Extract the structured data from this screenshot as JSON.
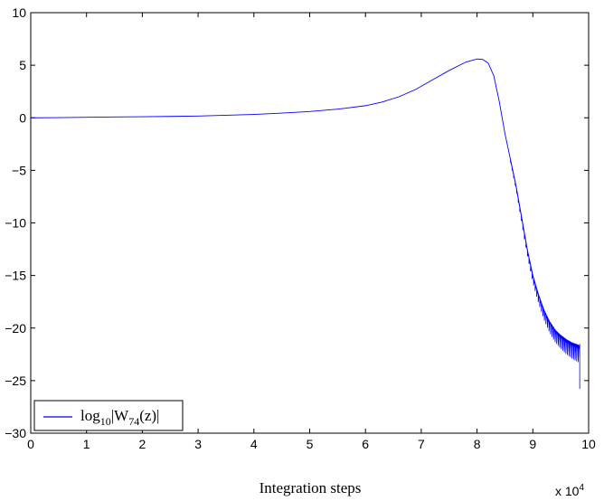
{
  "chart_data": {
    "type": "line",
    "title": "",
    "xlabel": "Integration steps",
    "ylabel": "",
    "x_exponent_base": "x 10",
    "x_exponent_power": "4",
    "xlim": [
      0,
      10
    ],
    "ylim": [
      -30,
      10
    ],
    "xticks": [
      "0",
      "1",
      "2",
      "3",
      "4",
      "5",
      "6",
      "7",
      "8",
      "9",
      "10"
    ],
    "yticks": [
      "10",
      "5",
      "0",
      "−5",
      "−10",
      "−15",
      "−20",
      "−25",
      "−30"
    ],
    "grid": false,
    "legend_position": "bottom-left",
    "legend": {
      "pre": "log",
      "sub1": "10",
      "mid": "|W",
      "sub2": "74",
      "post": "(z)|"
    },
    "line_color": "#0000ff",
    "series": [
      {
        "x": [
          0,
          0.5,
          1,
          1.5,
          2,
          2.5,
          3,
          3.5,
          4,
          4.5,
          5,
          5.5,
          6,
          6.3,
          6.6,
          6.9,
          7.2,
          7.5,
          7.8,
          8.0,
          8.1,
          8.2,
          8.3,
          8.4,
          8.5,
          8.6,
          8.7,
          8.8,
          8.9,
          9.0,
          9.1,
          9.2,
          9.3,
          9.4,
          9.5,
          9.6,
          9.7,
          9.8,
          9.84
        ],
        "y": [
          0,
          0.02,
          0.05,
          0.08,
          0.1,
          0.13,
          0.17,
          0.24,
          0.32,
          0.45,
          0.6,
          0.82,
          1.15,
          1.5,
          2.0,
          2.7,
          3.6,
          4.5,
          5.3,
          5.6,
          5.55,
          5.2,
          4.0,
          1.5,
          -1.5,
          -4.0,
          -6.5,
          -9.5,
          -12.5,
          -15.0,
          -16.8,
          -18.3,
          -19.4,
          -20.2,
          -20.7,
          -21.1,
          -21.4,
          -21.6,
          -21.7
        ]
      }
    ]
  }
}
